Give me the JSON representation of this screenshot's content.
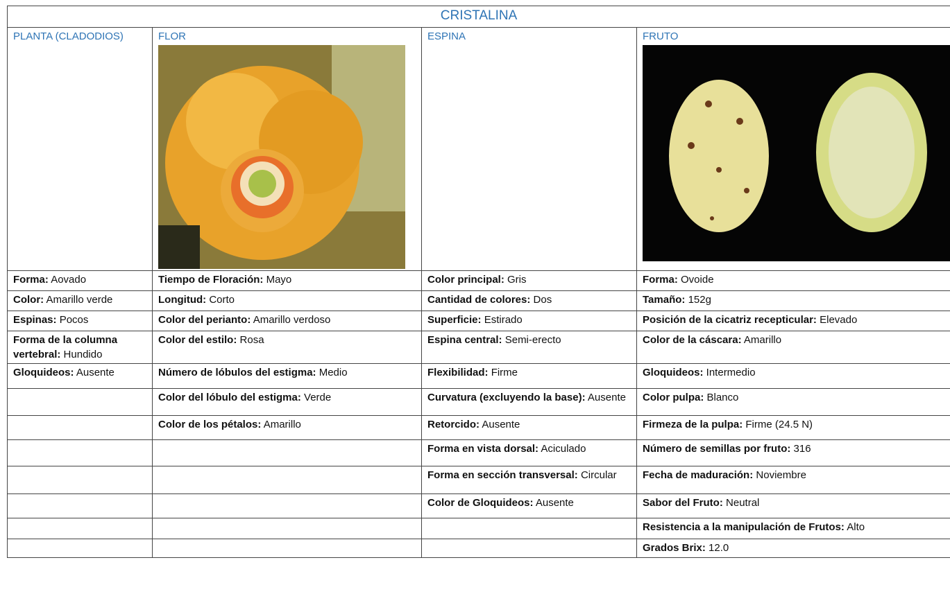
{
  "table": {
    "title": "CRISTALINA",
    "headers": [
      "PLANTA (CLADODIOS)",
      "FLOR",
      "ESPINA",
      "FRUTO"
    ],
    "rows": [
      [
        {
          "label": "Forma:",
          "value": "Aovado"
        },
        {
          "label": "Tiempo de Floración:",
          "value": "Mayo"
        },
        {
          "label": "Color principal:",
          "value": "Gris"
        },
        {
          "label": "Forma:",
          "value": "Ovoide"
        }
      ],
      [
        {
          "label": "Color:",
          "value": "Amarillo verde"
        },
        {
          "label": "Longitud:",
          "value": "Corto"
        },
        {
          "label": "Cantidad de colores:",
          "value": "Dos"
        },
        {
          "label": "Tamaño:",
          "value": "152g"
        }
      ],
      [
        {
          "label": "Espinas:",
          "value": "Pocos"
        },
        {
          "label": "Color del perianto:",
          "value": "Amarillo verdoso"
        },
        {
          "label": "Superficie:",
          "value": "Estirado"
        },
        {
          "label": "Posición de la cicatriz recepticular:",
          "value": "Elevado"
        }
      ],
      [
        {
          "label": "Forma de la columna vertebral:",
          "value": "Hundido"
        },
        {
          "label": "Color del estilo:",
          "value": "Rosa"
        },
        {
          "label": "Espina central:",
          "value": "Semi-erecto"
        },
        {
          "label": "Color de la cáscara:",
          "value": "Amarillo"
        }
      ],
      [
        {
          "label": "Gloquideos:",
          "value": "Ausente"
        },
        {
          "label": "Número de lóbulos del estigma:",
          "value": "Medio"
        },
        {
          "label": "Flexibilidad:",
          "value": "Firme"
        },
        {
          "label": "Gloquideos:",
          "value": "Intermedio"
        }
      ],
      [
        null,
        {
          "label": "Color del lóbulo del estigma:",
          "value": "Verde"
        },
        {
          "label": "Curvatura (excluyendo la base):",
          "value": "Ausente"
        },
        {
          "label": "Color pulpa:",
          "value": "Blanco"
        }
      ],
      [
        null,
        {
          "label": "Color de los pétalos:",
          "value": "Amarillo"
        },
        {
          "label": "Retorcido:",
          "value": "Ausente"
        },
        {
          "label": "Firmeza de la pulpa:",
          "value": "Firme (24.5 N)"
        }
      ],
      [
        null,
        null,
        {
          "label": "Forma en vista dorsal:",
          "value": "Aciculado"
        },
        {
          "label": "Número de semillas por fruto:",
          "value": "316"
        }
      ],
      [
        null,
        null,
        {
          "label": "Forma en sección transversal:",
          "value": "Circular"
        },
        {
          "label": "Fecha de maduración:",
          "value": "Noviembre"
        }
      ],
      [
        null,
        null,
        {
          "label": "Color de Gloquideos:",
          "value": "Ausente"
        },
        {
          "label": "Sabor del Fruto:",
          "value": "Neutral"
        }
      ],
      [
        null,
        null,
        null,
        {
          "label": "Resistencia a la manipulación de Frutos:",
          "value": "Alto"
        }
      ],
      [
        null,
        null,
        null,
        {
          "label": "Grados Brix:",
          "value": "12.0"
        }
      ]
    ]
  }
}
